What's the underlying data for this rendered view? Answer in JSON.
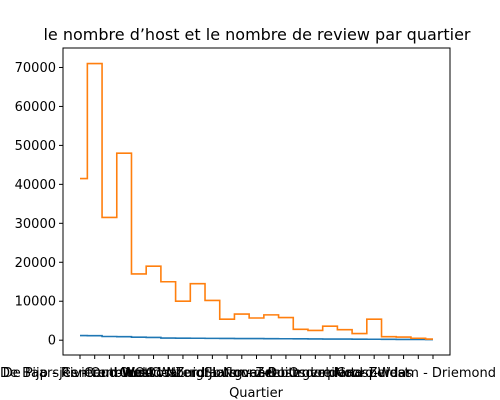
{
  "chart_data": {
    "type": "line",
    "title": "le nombre d’host et le nombre de review par quartier",
    "xlabel": "Quartier",
    "ylabel": "",
    "ylim": [
      -3800,
      75000
    ],
    "y_ticks": [
      0,
      10000,
      20000,
      30000,
      40000,
      50000,
      60000,
      70000
    ],
    "y_tick_labels": [
      "0",
      "10000",
      "20000",
      "30000",
      "40000",
      "50000",
      "60000",
      "70000"
    ],
    "x_ticks_visible": [
      "De Baarsjes - Oud-West",
      "De Pijp - Rivierenbuurt",
      "Centrum-West",
      "Centrum-Oost",
      "Oud-Oost",
      "Oud-Noord",
      "Zuid",
      "Watergraafsmeer",
      "Slotervaart",
      "Noord-Oost",
      "IJburg - Zeeburgereiland",
      "Osdorp",
      "Buitenveldert - Zuidas",
      "Noord-West",
      "Gaasperdam - Driemond"
    ],
    "grid": false,
    "legend": "none",
    "step": "mid",
    "series": [
      {
        "color": "#1f77b4",
        "values": [
          1200,
          1150,
          950,
          900,
          780,
          700,
          560,
          520,
          500,
          470,
          450,
          430,
          410,
          390,
          370,
          350,
          320,
          300,
          280,
          260,
          240,
          220,
          200,
          180,
          150
        ]
      },
      {
        "color": "#ff7f0e",
        "values": [
          41500,
          71000,
          31500,
          48000,
          17000,
          19000,
          15000,
          10000,
          14500,
          10200,
          5400,
          6700,
          5700,
          6500,
          5800,
          2800,
          2500,
          3600,
          2700,
          1700,
          5400,
          900,
          800,
          500,
          300
        ]
      }
    ]
  }
}
